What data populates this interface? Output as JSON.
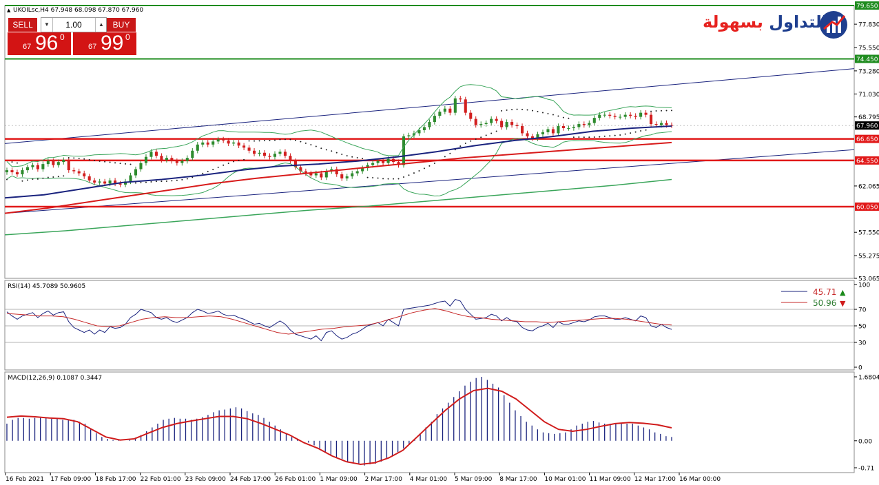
{
  "header": {
    "symbol_info": "UKOILsc,H4  67.948 68.098 67.870 67.960"
  },
  "trade_panel": {
    "sell_label": "SELL",
    "buy_label": "BUY",
    "quantity": "1.00",
    "sell_small": "67",
    "sell_big": "96",
    "sell_sup": "0",
    "buy_small": "67",
    "buy_big": "99",
    "buy_sup": "0"
  },
  "logo": {
    "text_part1": "بسهولة",
    "text_part2": "التداول",
    "icon": "bar-chart-logo-icon"
  },
  "colors": {
    "bull": "#2e8b2e",
    "bear": "#d21f1f",
    "ma_blue": "#1a237e",
    "ma_red": "#d81b1b",
    "bollinger": "#3aa55a",
    "channel": "#1a237e",
    "support": "#e11919",
    "resistance": "#1f8c1f",
    "rsi_line": "#1a237e",
    "rsi_signal": "#c62828",
    "macd_hist": "#1a237e",
    "macd_signal": "#d01c1c"
  },
  "chart_data": [
    {
      "type": "candlestick",
      "title": "",
      "symbol": "UKOILsc",
      "timeframe": "H4",
      "ylim": [
        53.065,
        79.65
      ],
      "y_ticks": [
        "79.650",
        "77.830",
        "75.550",
        "74.450",
        "73.280",
        "71.030",
        "68.795",
        "67.960",
        "66.650",
        "64.550",
        "62.065",
        "60.050",
        "57.550",
        "55.275",
        "53.065"
      ],
      "x_ticks": [
        "16 Feb 2021",
        "17 Feb 09:00",
        "18 Feb 17:00",
        "22 Feb 01:00",
        "23 Feb 09:00",
        "24 Feb 17:00",
        "26 Feb 01:00",
        "1 Mar 09:00",
        "2 Mar 17:00",
        "4 Mar 01:00",
        "5 Mar 09:00",
        "8 Mar 17:00",
        "10 Mar 01:00",
        "11 Mar 09:00",
        "12 Mar 17:00",
        "16 Mar 00:00"
      ],
      "close": [
        63.6,
        63.4,
        63.2,
        63.6,
        63.9,
        64.1,
        63.7,
        64.2,
        64.5,
        64.1,
        64.4,
        64.6,
        63.6,
        63.5,
        63.3,
        63.0,
        62.6,
        62.4,
        62.5,
        62.3,
        62.6,
        62.3,
        62.2,
        62.5,
        63.1,
        63.7,
        64.3,
        64.9,
        65.4,
        65.0,
        64.6,
        64.8,
        64.5,
        64.3,
        64.5,
        64.8,
        65.5,
        66.1,
        66.3,
        66.1,
        66.4,
        66.6,
        66.5,
        66.2,
        66.3,
        66.0,
        65.8,
        65.5,
        65.2,
        65.3,
        65.0,
        64.9,
        65.2,
        65.4,
        65.0,
        64.5,
        63.9,
        63.5,
        63.3,
        63.1,
        63.3,
        62.9,
        63.5,
        63.7,
        63.2,
        62.8,
        63.0,
        63.3,
        63.5,
        63.8,
        64.1,
        64.3,
        64.5,
        64.3,
        64.7,
        64.4,
        64.1,
        66.9,
        67.0,
        67.2,
        67.5,
        67.8,
        68.3,
        68.9,
        69.3,
        69.6,
        69.2,
        70.6,
        70.5,
        69.2,
        68.6,
        68.0,
        68.1,
        68.2,
        68.6,
        68.4,
        67.8,
        68.3,
        68.0,
        67.9,
        67.2,
        66.9,
        66.7,
        67.1,
        67.3,
        67.6,
        67.2,
        67.9,
        67.7,
        67.7,
        67.8,
        68.1,
        68.0,
        68.2,
        68.7,
        69.0,
        69.0,
        68.9,
        68.8,
        68.8,
        69.0,
        68.9,
        68.8,
        69.2,
        69.0,
        68.1,
        68.0,
        68.2,
        68.0,
        67.96
      ],
      "series": [
        {
          "name": "",
          "kind": "moving-average",
          "values": [
            60.9,
            61.2,
            61.8,
            62.4,
            62.7,
            63.1,
            63.6,
            64.0,
            64.2,
            64.5,
            64.9,
            65.4,
            66.0,
            66.5,
            66.9,
            67.4,
            67.7,
            67.9
          ]
        },
        {
          "name": "",
          "kind": "moving-average",
          "values": [
            59.4,
            59.9,
            60.5,
            61.1,
            61.7,
            62.3,
            62.8,
            63.2,
            63.6,
            64.0,
            64.4,
            64.8,
            65.1,
            65.4,
            65.7,
            66.0,
            66.3
          ]
        },
        {
          "name": "",
          "kind": "moving-average",
          "values": [
            57.3,
            57.7,
            58.2,
            58.7,
            59.2,
            59.7,
            60.1,
            60.6,
            61.1,
            61.6,
            62.1,
            62.7
          ]
        }
      ],
      "levels": [
        {
          "name": "",
          "value": 79.65,
          "color": "resistance"
        },
        {
          "name": "",
          "value": 74.45,
          "color": "resistance"
        },
        {
          "name": "",
          "value": 66.65,
          "color": "support"
        },
        {
          "name": "",
          "value": 64.55,
          "color": "support"
        },
        {
          "name": "",
          "value": 60.05,
          "color": "support"
        }
      ],
      "current_price": 67.96
    },
    {
      "type": "line",
      "title": "RSI(14) 45.7089 50.9605",
      "ylim": [
        0,
        100
      ],
      "y_ticks": [
        "100",
        "70",
        "50",
        "30",
        "0"
      ],
      "levels": [
        70,
        50,
        30
      ],
      "legend": [
        {
          "value": "45.71",
          "direction": "up",
          "color": "rsi_line"
        },
        {
          "value": "50.96",
          "direction": "down",
          "color": "rsi_signal"
        }
      ],
      "series": [
        {
          "name": "",
          "values": [
            67,
            62,
            58,
            62,
            64,
            66,
            60,
            65,
            68,
            63,
            66,
            67,
            55,
            48,
            45,
            42,
            45,
            40,
            45,
            42,
            49,
            47,
            48,
            52,
            60,
            64,
            70,
            68,
            66,
            60,
            58,
            60,
            56,
            54,
            57,
            60,
            66,
            70,
            68,
            65,
            66,
            68,
            64,
            62,
            63,
            60,
            58,
            55,
            52,
            53,
            50,
            48,
            52,
            56,
            52,
            45,
            40,
            38,
            36,
            34,
            38,
            32,
            42,
            44,
            38,
            34,
            36,
            40,
            42,
            46,
            50,
            52,
            54,
            50,
            58,
            54,
            50,
            70,
            71,
            72,
            73,
            74,
            75,
            77,
            79,
            80,
            74,
            82,
            80,
            70,
            64,
            58,
            59,
            60,
            64,
            62,
            56,
            60,
            56,
            55,
            48,
            45,
            44,
            48,
            50,
            53,
            48,
            55,
            52,
            52,
            54,
            56,
            55,
            57,
            61,
            62,
            62,
            60,
            58,
            58,
            60,
            58,
            56,
            62,
            60,
            50,
            48,
            52,
            48,
            45.71
          ]
        },
        {
          "name": "",
          "values": [
            65,
            64,
            63,
            62,
            62,
            61,
            58,
            54,
            50,
            49,
            50,
            54,
            58,
            60,
            61,
            60,
            60,
            61,
            62,
            61,
            58,
            54,
            50,
            46,
            42,
            40,
            42,
            44,
            46,
            47,
            49,
            50,
            51,
            54,
            58,
            62,
            66,
            69,
            71,
            68,
            64,
            61,
            60,
            58,
            57,
            56,
            55,
            55,
            54,
            55,
            56,
            57,
            58,
            59,
            59,
            58,
            56,
            54,
            52,
            50.96
          ]
        }
      ]
    },
    {
      "type": "bar",
      "title": "MACD(12,26,9) 0.1087 0.3447",
      "ylim": [
        -0.71,
        1.6804
      ],
      "y_ticks": [
        "1.6804",
        "0.00",
        "-0.71"
      ],
      "series": [
        {
          "name": "",
          "kind": "histogram",
          "values": [
            0.45,
            0.55,
            0.6,
            0.6,
            0.58,
            0.6,
            0.6,
            0.6,
            0.58,
            0.58,
            0.55,
            0.55,
            0.55,
            0.5,
            0.45,
            0.3,
            0.2,
            0.1,
            0.05,
            0.02,
            0.02,
            0.0,
            0.02,
            0.08,
            0.15,
            0.25,
            0.35,
            0.45,
            0.55,
            0.58,
            0.6,
            0.58,
            0.58,
            0.55,
            0.58,
            0.62,
            0.68,
            0.75,
            0.8,
            0.82,
            0.85,
            0.88,
            0.85,
            0.78,
            0.72,
            0.68,
            0.6,
            0.5,
            0.4,
            0.3,
            0.2,
            0.1,
            0.05,
            0.0,
            -0.05,
            -0.12,
            -0.2,
            -0.3,
            -0.4,
            -0.45,
            -0.48,
            -0.55,
            -0.6,
            -0.62,
            -0.65,
            -0.62,
            -0.6,
            -0.55,
            -0.48,
            -0.4,
            -0.3,
            -0.2,
            -0.1,
            0.05,
            0.2,
            0.35,
            0.5,
            0.7,
            0.85,
            1.0,
            1.15,
            1.3,
            1.45,
            1.55,
            1.65,
            1.68,
            1.6,
            1.5,
            1.4,
            1.2,
            1.0,
            0.8,
            0.65,
            0.5,
            0.4,
            0.3,
            0.22,
            0.2,
            0.18,
            0.2,
            0.22,
            0.3,
            0.4,
            0.45,
            0.5,
            0.52,
            0.48,
            0.45,
            0.45,
            0.45,
            0.45,
            0.45,
            0.45,
            0.4,
            0.35,
            0.3,
            0.22,
            0.18,
            0.12,
            0.1
          ]
        },
        {
          "name": "",
          "kind": "signal",
          "values": [
            0.62,
            0.65,
            0.63,
            0.6,
            0.58,
            0.5,
            0.3,
            0.1,
            0.02,
            0.05,
            0.2,
            0.35,
            0.45,
            0.52,
            0.58,
            0.64,
            0.64,
            0.58,
            0.45,
            0.3,
            0.15,
            -0.05,
            -0.2,
            -0.4,
            -0.55,
            -0.62,
            -0.58,
            -0.45,
            -0.25,
            0.1,
            0.45,
            0.8,
            1.1,
            1.32,
            1.38,
            1.3,
            1.1,
            0.8,
            0.5,
            0.3,
            0.25,
            0.3,
            0.38,
            0.45,
            0.48,
            0.46,
            0.42,
            0.34
          ]
        }
      ]
    }
  ]
}
